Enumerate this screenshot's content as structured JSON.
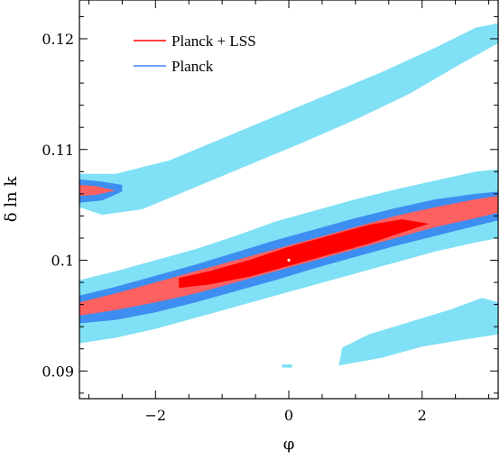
{
  "chart_data": {
    "type": "contour",
    "title": "",
    "xlabel": "φ",
    "ylabel": "δ ln k",
    "xlim": [
      -3.14159,
      3.14159
    ],
    "ylim": [
      0.0875,
      0.1235
    ],
    "x_ticks": [
      -2,
      0,
      2
    ],
    "x_tick_labels": [
      "−2",
      "0",
      "2"
    ],
    "y_ticks": [
      0.09,
      0.1,
      0.11,
      0.12
    ],
    "y_tick_labels": [
      "0.09",
      "0.1",
      "0.11",
      "0.12"
    ],
    "grid": false,
    "legend_position": "top-left",
    "fiducial_point": {
      "x": 0.0,
      "y": 0.1
    },
    "series": [
      {
        "name": "Planck + LSS",
        "color": "#ff0000",
        "regions": [
          {
            "level": "1-sigma",
            "color": "#ff0000",
            "polygon": [
              [
                -1.65,
                0.0975
              ],
              [
                -1.2,
                0.0978
              ],
              [
                -0.6,
                0.0985
              ],
              [
                0,
                0.0995
              ],
              [
                0.6,
                0.1005
              ],
              [
                1.2,
                0.1015
              ],
              [
                1.7,
                0.1025
              ],
              [
                2.1,
                0.1033
              ],
              [
                1.7,
                0.1037
              ],
              [
                1.2,
                0.1032
              ],
              [
                0.6,
                0.1022
              ],
              [
                0,
                0.1012
              ],
              [
                -0.6,
                0.1
              ],
              [
                -1.2,
                0.099
              ],
              [
                -1.65,
                0.0984
              ]
            ]
          },
          {
            "level": "2-sigma",
            "color": "#ff6060",
            "polygon": [
              [
                -3.14159,
                0.095
              ],
              [
                -2.6,
                0.0955
              ],
              [
                -2,
                0.0962
              ],
              [
                -1.4,
                0.097
              ],
              [
                -0.8,
                0.098
              ],
              [
                -0.2,
                0.099
              ],
              [
                0.4,
                0.1
              ],
              [
                1,
                0.101
              ],
              [
                1.6,
                0.102
              ],
              [
                2.2,
                0.103
              ],
              [
                2.8,
                0.1038
              ],
              [
                3.14159,
                0.1043
              ],
              [
                3.14159,
                0.1058
              ],
              [
                2.8,
                0.1055
              ],
              [
                2.2,
                0.1048
              ],
              [
                1.6,
                0.104
              ],
              [
                1,
                0.103
              ],
              [
                0.4,
                0.102
              ],
              [
                -0.2,
                0.101
              ],
              [
                -0.8,
                0.1
              ],
              [
                -1.4,
                0.099
              ],
              [
                -2,
                0.098
              ],
              [
                -2.6,
                0.097
              ],
              [
                -3.14159,
                0.0962
              ]
            ]
          },
          {
            "level": "2-sigma",
            "color": "#ff6060",
            "polygon": [
              [
                -3.14159,
                0.1058
              ],
              [
                -2.9,
                0.1059
              ],
              [
                -2.6,
                0.1063
              ],
              [
                -2.9,
                0.1067
              ],
              [
                -3.14159,
                0.1068
              ]
            ]
          }
        ]
      },
      {
        "name": "Planck",
        "color": "#4080ff",
        "regions": [
          {
            "level": "1-sigma",
            "color": "#3d8ef0",
            "polygon": [
              [
                -3.14159,
                0.0943
              ],
              [
                -2.6,
                0.0946
              ],
              [
                -2,
                0.0953
              ],
              [
                -1.4,
                0.0962
              ],
              [
                -0.8,
                0.0972
              ],
              [
                -0.2,
                0.0982
              ],
              [
                0.4,
                0.0993
              ],
              [
                1,
                0.1003
              ],
              [
                1.6,
                0.1013
              ],
              [
                2.2,
                0.1022
              ],
              [
                2.8,
                0.1031
              ],
              [
                3.14159,
                0.1036
              ],
              [
                3.14159,
                0.1062
              ],
              [
                2.8,
                0.106
              ],
              [
                2.2,
                0.1055
              ],
              [
                1.6,
                0.1047
              ],
              [
                1,
                0.1038
              ],
              [
                0.4,
                0.1028
              ],
              [
                -0.2,
                0.1018
              ],
              [
                -0.8,
                0.1007
              ],
              [
                -1.4,
                0.0996
              ],
              [
                -2,
                0.0986
              ],
              [
                -2.6,
                0.0976
              ],
              [
                -3.14159,
                0.0968
              ]
            ]
          },
          {
            "level": "1-sigma",
            "color": "#3d8ef0",
            "polygon": [
              [
                -3.14159,
                0.1052
              ],
              [
                -2.8,
                0.1054
              ],
              [
                -2.5,
                0.1062
              ],
              [
                -2.5,
                0.1068
              ],
              [
                -2.8,
                0.1071
              ],
              [
                -3.14159,
                0.1073
              ]
            ]
          },
          {
            "level": "2-sigma",
            "color": "#80e0f5",
            "polygon": [
              [
                -3.14159,
                0.0925
              ],
              [
                -2.6,
                0.093
              ],
              [
                -2,
                0.0938
              ],
              [
                -1.4,
                0.0948
              ],
              [
                -0.8,
                0.0958
              ],
              [
                -0.2,
                0.0968
              ],
              [
                0.4,
                0.0978
              ],
              [
                1,
                0.0988
              ],
              [
                1.6,
                0.0998
              ],
              [
                2.2,
                0.1008
              ],
              [
                2.8,
                0.1016
              ],
              [
                3.14159,
                0.102
              ],
              [
                3.14159,
                0.1082
              ],
              [
                2.8,
                0.108
              ],
              [
                2.2,
                0.1072
              ],
              [
                1.6,
                0.1064
              ],
              [
                1,
                0.1055
              ],
              [
                0.4,
                0.1045
              ],
              [
                -0.2,
                0.1035
              ],
              [
                -0.8,
                0.1022
              ],
              [
                -1.4,
                0.101
              ],
              [
                -2,
                0.1
              ],
              [
                -2.6,
                0.099
              ],
              [
                -3.14159,
                0.0982
              ]
            ]
          },
          {
            "level": "2-sigma",
            "color": "#80e0f5",
            "polygon": [
              [
                -3.14159,
                0.1048
              ],
              [
                -2.8,
                0.1041
              ],
              [
                -2.2,
                0.1046
              ],
              [
                -1.4,
                0.1066
              ],
              [
                -0.6,
                0.1086
              ],
              [
                0.2,
                0.1106
              ],
              [
                1,
                0.1127
              ],
              [
                1.8,
                0.115
              ],
              [
                2.6,
                0.1178
              ],
              [
                3.14159,
                0.1196
              ],
              [
                3.14159,
                0.1214
              ],
              [
                2.8,
                0.121
              ],
              [
                2.2,
                0.1192
              ],
              [
                1.4,
                0.117
              ],
              [
                0.6,
                0.115
              ],
              [
                -0.2,
                0.113
              ],
              [
                -1,
                0.111
              ],
              [
                -1.8,
                0.109
              ],
              [
                -2.6,
                0.1078
              ],
              [
                -3.14159,
                0.1078
              ]
            ]
          },
          {
            "level": "2-sigma",
            "color": "#80e0f5",
            "polygon": [
              [
                0.75,
                0.0905
              ],
              [
                1.4,
                0.0912
              ],
              [
                2,
                0.0922
              ],
              [
                2.6,
                0.0928
              ],
              [
                3.14159,
                0.0933
              ],
              [
                3.14159,
                0.0962
              ],
              [
                2.9,
                0.0966
              ],
              [
                2.4,
                0.0955
              ],
              [
                1.8,
                0.0944
              ],
              [
                1.2,
                0.0933
              ],
              [
                0.8,
                0.0921
              ]
            ]
          },
          {
            "level": "2-sigma",
            "color": "#80e0f5",
            "polygon": [
              [
                -0.1,
                0.0903
              ],
              [
                0.05,
                0.0903
              ],
              [
                0.05,
                0.0906
              ],
              [
                -0.1,
                0.0906
              ]
            ]
          }
        ]
      }
    ]
  }
}
